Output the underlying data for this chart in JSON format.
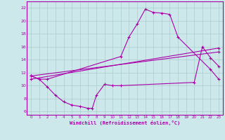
{
  "bg_color": "#cce8ea",
  "line_color": "#aa00aa",
  "grid_color": "#aacccc",
  "xlabel": "Windchill (Refroidissement éolien,°C)",
  "xlim": [
    -0.5,
    23.5
  ],
  "ylim": [
    5.5,
    23.0
  ],
  "yticks": [
    6,
    8,
    10,
    12,
    14,
    16,
    18,
    20,
    22
  ],
  "xticks": [
    0,
    1,
    2,
    3,
    4,
    5,
    6,
    7,
    8,
    9,
    10,
    11,
    12,
    13,
    14,
    15,
    16,
    17,
    18,
    19,
    20,
    21,
    22,
    23
  ],
  "line1_x": [
    0,
    1,
    2,
    11,
    12,
    13,
    14,
    15,
    16,
    17,
    18,
    22,
    23
  ],
  "line1_y": [
    11.5,
    11.0,
    11.0,
    14.5,
    17.5,
    19.5,
    21.8,
    21.3,
    21.2,
    21.0,
    17.5,
    12.5,
    11.0
  ],
  "line2_x": [
    0,
    1,
    2,
    3,
    4,
    5,
    6,
    7,
    7.5,
    8,
    9,
    10,
    11,
    20,
    21,
    22,
    23
  ],
  "line2_y": [
    11.5,
    11.0,
    9.8,
    8.5,
    7.5,
    7.0,
    6.8,
    6.5,
    6.5,
    8.5,
    10.2,
    10.0,
    10.0,
    10.5,
    16.0,
    14.3,
    13.0
  ],
  "line3_x": [
    0,
    23
  ],
  "line3_y": [
    11.5,
    15.2
  ],
  "line4_x": [
    0,
    23
  ],
  "line4_y": [
    11.0,
    15.8
  ]
}
